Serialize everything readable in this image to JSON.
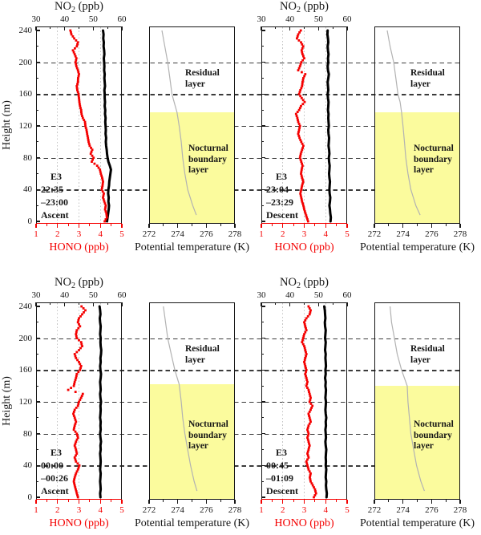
{
  "colors": {
    "hono_series": "#f40000",
    "no2_series": "#000000",
    "theta_line": "#b2b2b2",
    "nbl_fill": "#fbfb9d",
    "dashed_grid": "#3b3b3b",
    "dotted_grid": "#c6c6c6",
    "axis": "#161616"
  },
  "chart_data": {
    "type": "scatter",
    "layout": "2 rows x 2 pairs; each pair = HONO/NO2 vertical profile panel + potential temperature panel with shaded nocturnal boundary layer; horizontal dashed gridlines at 40/80/120/160/200 m span each row; dotted vertical gridlines at HONO 2,3,4",
    "titles": {
      "no2_base": "NO",
      "no2_sub": "2",
      "no2_rest": " (ppb)",
      "hono": "HONO (ppb)",
      "theta": "Potential temperature (K)",
      "height": "Height (m)"
    },
    "axes": {
      "no2": {
        "range": [
          30,
          60
        ],
        "ticks": [
          30,
          40,
          50,
          60
        ],
        "minor": [
          35,
          45,
          55
        ]
      },
      "hono": {
        "range": [
          1,
          5
        ],
        "ticks": [
          1,
          2,
          3,
          4,
          5
        ],
        "minor": [
          1.5,
          2.5,
          3.5,
          4.5
        ],
        "dotted_gridlines": [
          2,
          3,
          4
        ]
      },
      "theta": {
        "range": [
          272,
          278
        ],
        "ticks": [
          272,
          274,
          276,
          278
        ],
        "minor": [
          273,
          275,
          277
        ]
      },
      "height": {
        "range": [
          0,
          240
        ],
        "ticks": [
          0,
          40,
          80,
          120,
          160,
          200,
          240
        ],
        "minor": [
          20,
          60,
          100,
          140,
          180,
          220
        ],
        "gridlines": [
          40,
          80,
          120,
          160,
          200
        ]
      }
    },
    "layers": {
      "residual": [
        "Residual",
        "layer"
      ],
      "nocturnal": [
        "Nocturnal",
        "boundary",
        "layer"
      ]
    },
    "height_start_m": 0,
    "height_step_m": 5,
    "panels": [
      {
        "annotation": [
          "E3",
          "22:35",
          "–23:00",
          "Ascent"
        ],
        "nbl_top_m": 137,
        "hono_ppb": [
          4.2,
          4.3,
          4.28,
          4.22,
          4.25,
          4.18,
          4.12,
          4.16,
          4.06,
          4.1,
          4.12,
          4.08,
          4.02,
          3.98,
          3.85,
          3.6,
          3.68,
          3.55,
          3.62,
          3.5,
          3.45,
          3.42,
          3.38,
          3.35,
          3.3,
          3.28,
          3.18,
          3.12,
          3.1,
          3.05,
          3.02,
          3.0,
          2.98,
          2.92,
          2.9,
          2.95,
          2.96,
          3.0,
          2.95,
          2.88,
          2.84,
          2.88,
          2.8,
          2.72,
          2.9,
          2.95,
          2.78,
          2.65,
          2.6
        ],
        "no2_ppb": [
          54.8,
          55.0,
          55.2,
          55.4,
          55.5,
          55.3,
          55.4,
          55.2,
          55.3,
          55.5,
          55.6,
          55.8,
          56.0,
          56.2,
          55.8,
          55.3,
          55.0,
          54.8,
          54.7,
          54.5,
          54.4,
          54.5,
          54.3,
          54.4,
          54.3,
          54.2,
          54.3,
          54.1,
          54.2,
          54.0,
          54.1,
          54.0,
          54.0,
          53.9,
          54.1,
          54.0,
          53.9,
          54.0,
          53.8,
          53.9,
          53.8,
          53.7,
          53.9,
          53.8,
          53.6,
          53.7,
          53.5,
          53.6,
          53.4
        ],
        "theta_K": [
          [
            8,
            275.3
          ],
          [
            20,
            275.05
          ],
          [
            40,
            274.7
          ],
          [
            60,
            274.5
          ],
          [
            80,
            274.35
          ],
          [
            100,
            274.25
          ],
          [
            120,
            274.1
          ],
          [
            137,
            273.95
          ],
          [
            150,
            273.75
          ],
          [
            160,
            273.6
          ],
          [
            180,
            273.45
          ],
          [
            200,
            273.3
          ],
          [
            220,
            273.1
          ],
          [
            240,
            272.9
          ]
        ]
      },
      {
        "annotation": [
          "E3",
          "23:04",
          "–23:29",
          "Descent"
        ],
        "nbl_top_m": 137,
        "hono_ppb": [
          3.18,
          3.12,
          3.06,
          3.0,
          2.96,
          2.9,
          2.86,
          2.82,
          2.86,
          2.9,
          2.95,
          2.9,
          2.85,
          2.88,
          2.92,
          2.86,
          2.8,
          2.84,
          2.9,
          2.96,
          2.86,
          2.78,
          2.72,
          2.76,
          2.8,
          2.72,
          2.68,
          2.62,
          2.76,
          2.85,
          3.02,
          2.88,
          2.76,
          2.82,
          2.9,
          2.92,
          2.96,
          3.05,
          2.72,
          2.8,
          2.86,
          3.0,
          2.92,
          2.88,
          2.95,
          2.85,
          2.66,
          2.72,
          2.84
        ],
        "no2_ppb": [
          54.2,
          54.3,
          54.1,
          54.0,
          53.8,
          54.0,
          54.1,
          53.9,
          53.8,
          53.9,
          54.0,
          53.8,
          53.7,
          53.8,
          53.9,
          53.7,
          53.6,
          53.8,
          53.7,
          53.5,
          53.6,
          53.7,
          53.5,
          53.4,
          53.6,
          53.5,
          53.4,
          53.5,
          53.3,
          53.4,
          53.5,
          53.3,
          53.2,
          53.4,
          53.3,
          53.2,
          53.4,
          53.6,
          53.3,
          53.2,
          53.4,
          53.3,
          53.5,
          53.3,
          53.2,
          53.4,
          53.3,
          53.1,
          53.2
        ],
        "theta_K": [
          [
            8,
            275.2
          ],
          [
            20,
            274.9
          ],
          [
            40,
            274.55
          ],
          [
            60,
            274.35
          ],
          [
            80,
            274.2
          ],
          [
            100,
            274.1
          ],
          [
            120,
            274.0
          ],
          [
            137,
            273.9
          ],
          [
            150,
            273.8
          ],
          [
            160,
            273.65
          ],
          [
            180,
            273.5
          ],
          [
            200,
            273.35
          ],
          [
            220,
            273.1
          ],
          [
            240,
            272.9
          ]
        ]
      },
      {
        "annotation": [
          "E3",
          "00:00",
          "–00:26",
          "Ascent"
        ],
        "nbl_top_m": 142,
        "hono_ppb": [
          2.95,
          2.9,
          2.85,
          2.8,
          2.76,
          2.8,
          2.86,
          2.95,
          3.02,
          2.86,
          2.8,
          2.9,
          2.86,
          2.8,
          2.86,
          2.95,
          2.9,
          2.76,
          2.8,
          2.86,
          2.8,
          2.74,
          2.8,
          2.95,
          3.0,
          3.1,
          3.18,
          2.5,
          2.76,
          2.8,
          2.86,
          2.9,
          3.05,
          3.1,
          3.0,
          2.86,
          2.8,
          3.0,
          3.15,
          3.1,
          2.9,
          2.86,
          2.9,
          3.05,
          2.95,
          3.0,
          3.15,
          3.3,
          3.12
        ],
        "no2_ppb": [
          52.5,
          52.4,
          52.6,
          52.5,
          52.4,
          52.5,
          52.6,
          52.4,
          52.5,
          52.6,
          52.5,
          52.4,
          52.6,
          52.5,
          52.7,
          52.5,
          52.4,
          52.6,
          52.5,
          52.6,
          52.4,
          52.5,
          52.6,
          52.5,
          52.7,
          52.5,
          52.4,
          52.6,
          52.5,
          52.4,
          52.6,
          52.7,
          52.5,
          52.4,
          52.6,
          52.5,
          52.7,
          52.8,
          52.6,
          52.5,
          52.6,
          52.4,
          52.5,
          52.6,
          52.4,
          52.3,
          52.5,
          52.4,
          52.2
        ],
        "theta_K": [
          [
            8,
            275.35
          ],
          [
            20,
            275.15
          ],
          [
            40,
            274.9
          ],
          [
            60,
            274.7
          ],
          [
            80,
            274.5
          ],
          [
            100,
            274.35
          ],
          [
            120,
            274.25
          ],
          [
            142,
            274.1
          ],
          [
            160,
            273.8
          ],
          [
            180,
            273.55
          ],
          [
            200,
            273.3
          ],
          [
            220,
            273.15
          ],
          [
            240,
            273.0
          ]
        ]
      },
      {
        "annotation": [
          "E3",
          "00:45",
          "–01:09",
          "Descent"
        ],
        "nbl_top_m": 140,
        "hono_ppb": [
          3.45,
          3.55,
          3.5,
          3.4,
          3.3,
          3.26,
          3.3,
          3.2,
          3.15,
          3.1,
          3.2,
          3.15,
          3.2,
          3.25,
          3.2,
          3.15,
          3.2,
          3.15,
          3.2,
          3.3,
          3.25,
          3.2,
          3.3,
          3.38,
          3.25,
          3.3,
          3.25,
          3.2,
          3.1,
          3.15,
          3.1,
          3.05,
          3.1,
          3.05,
          3.0,
          3.05,
          3.1,
          3.05,
          3.0,
          2.9,
          2.95,
          3.0,
          3.1,
          3.05,
          3.0,
          3.1,
          3.25,
          3.3,
          3.2
        ],
        "no2_ppb": [
          52.8,
          52.9,
          52.7,
          52.6,
          52.7,
          52.5,
          52.6,
          52.7,
          52.5,
          52.6,
          52.5,
          52.6,
          52.7,
          52.5,
          52.4,
          52.6,
          52.5,
          52.4,
          52.6,
          52.5,
          52.7,
          52.5,
          52.4,
          52.5,
          52.6,
          52.4,
          52.5,
          52.6,
          52.4,
          52.5,
          52.3,
          52.5,
          52.4,
          52.6,
          52.5,
          52.4,
          52.5,
          52.3,
          52.4,
          52.5,
          52.3,
          52.4,
          52.5,
          52.3,
          52.2,
          52.4,
          52.3,
          52.2,
          52.0
        ],
        "theta_K": [
          [
            8,
            275.5
          ],
          [
            20,
            275.25
          ],
          [
            40,
            274.95
          ],
          [
            60,
            274.75
          ],
          [
            80,
            274.55
          ],
          [
            100,
            274.45
          ],
          [
            120,
            274.35
          ],
          [
            140,
            274.3
          ],
          [
            160,
            273.9
          ],
          [
            180,
            273.6
          ],
          [
            200,
            273.4
          ],
          [
            220,
            273.2
          ],
          [
            240,
            273.1
          ]
        ]
      }
    ]
  }
}
